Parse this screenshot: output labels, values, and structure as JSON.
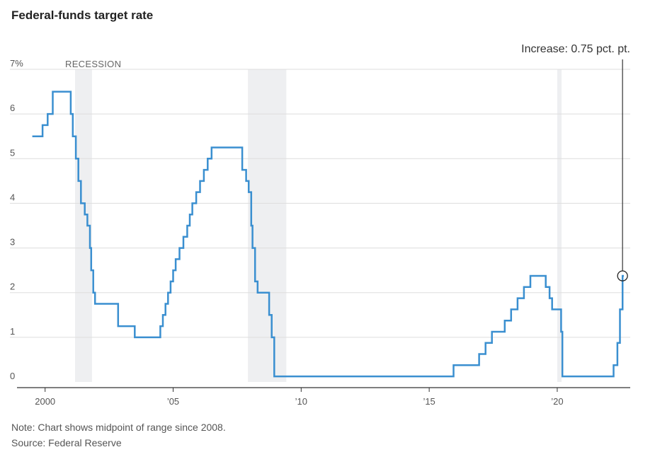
{
  "chart_data": {
    "type": "line",
    "title": "Federal-funds target rate",
    "note": "Note: Chart shows midpoint of range since 2008.",
    "source": "Source: Federal Reserve",
    "recession_label": "RECESSION",
    "annotation": "Increase: 0.75 pct. pt.",
    "xlim": [
      1999.4,
      2022.85
    ],
    "ylim": [
      0,
      7
    ],
    "y_ticks": [
      {
        "value": 0,
        "label": "0"
      },
      {
        "value": 1,
        "label": "1"
      },
      {
        "value": 2,
        "label": "2"
      },
      {
        "value": 3,
        "label": "3"
      },
      {
        "value": 4,
        "label": "4"
      },
      {
        "value": 5,
        "label": "5"
      },
      {
        "value": 6,
        "label": "6"
      },
      {
        "value": 7,
        "label": "7%"
      }
    ],
    "x_ticks": [
      {
        "value": 2000,
        "label": "2000"
      },
      {
        "value": 2005,
        "label": "’05"
      },
      {
        "value": 2010,
        "label": "’10"
      },
      {
        "value": 2015,
        "label": "’15"
      },
      {
        "value": 2020,
        "label": "’20"
      }
    ],
    "recessions": [
      {
        "start": 2001.17,
        "end": 2001.83
      },
      {
        "start": 2007.92,
        "end": 2009.42
      },
      {
        "start": 2020.0,
        "end": 2020.17
      }
    ],
    "series": [
      {
        "name": "Federal-funds target rate",
        "color": "#3a8fd0",
        "points": [
          [
            1999.5,
            5.5
          ],
          [
            1999.9,
            5.75
          ],
          [
            2000.1,
            6.0
          ],
          [
            2000.3,
            6.5
          ],
          [
            2001.0,
            6.0
          ],
          [
            2001.08,
            5.5
          ],
          [
            2001.2,
            5.0
          ],
          [
            2001.3,
            4.5
          ],
          [
            2001.4,
            4.0
          ],
          [
            2001.55,
            3.75
          ],
          [
            2001.65,
            3.5
          ],
          [
            2001.75,
            3.0
          ],
          [
            2001.8,
            2.5
          ],
          [
            2001.88,
            2.0
          ],
          [
            2001.95,
            1.75
          ],
          [
            2002.85,
            1.25
          ],
          [
            2003.5,
            1.0
          ],
          [
            2004.5,
            1.25
          ],
          [
            2004.6,
            1.5
          ],
          [
            2004.7,
            1.75
          ],
          [
            2004.8,
            2.0
          ],
          [
            2004.9,
            2.25
          ],
          [
            2005.0,
            2.5
          ],
          [
            2005.1,
            2.75
          ],
          [
            2005.25,
            3.0
          ],
          [
            2005.4,
            3.25
          ],
          [
            2005.55,
            3.5
          ],
          [
            2005.65,
            3.75
          ],
          [
            2005.75,
            4.0
          ],
          [
            2005.9,
            4.25
          ],
          [
            2006.05,
            4.5
          ],
          [
            2006.2,
            4.75
          ],
          [
            2006.35,
            5.0
          ],
          [
            2006.5,
            5.25
          ],
          [
            2007.7,
            4.75
          ],
          [
            2007.85,
            4.5
          ],
          [
            2007.95,
            4.25
          ],
          [
            2008.05,
            3.5
          ],
          [
            2008.1,
            3.0
          ],
          [
            2008.2,
            2.25
          ],
          [
            2008.3,
            2.0
          ],
          [
            2008.75,
            1.5
          ],
          [
            2008.85,
            1.0
          ],
          [
            2008.95,
            0.125
          ],
          [
            2015.95,
            0.375
          ],
          [
            2016.95,
            0.625
          ],
          [
            2017.2,
            0.875
          ],
          [
            2017.45,
            1.125
          ],
          [
            2017.95,
            1.375
          ],
          [
            2018.2,
            1.625
          ],
          [
            2018.45,
            1.875
          ],
          [
            2018.7,
            2.125
          ],
          [
            2018.95,
            2.375
          ],
          [
            2019.55,
            2.125
          ],
          [
            2019.7,
            1.875
          ],
          [
            2019.8,
            1.625
          ],
          [
            2020.15,
            1.125
          ],
          [
            2020.2,
            0.125
          ],
          [
            2022.2,
            0.375
          ],
          [
            2022.35,
            0.875
          ],
          [
            2022.45,
            1.625
          ],
          [
            2022.55,
            2.375
          ],
          [
            2022.6,
            2.375
          ]
        ]
      }
    ],
    "highlight": {
      "x": 2022.55,
      "y": 2.375
    }
  }
}
